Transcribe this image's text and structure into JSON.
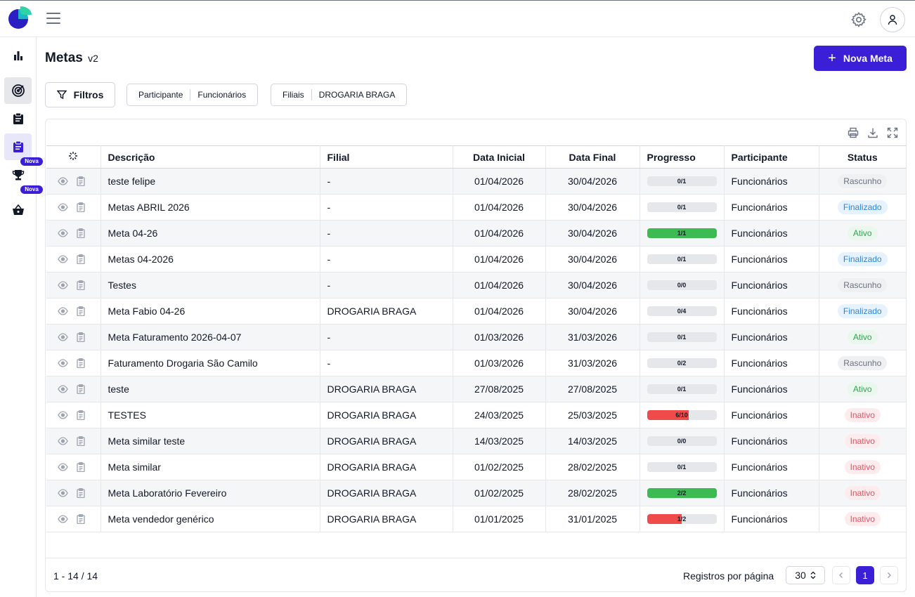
{
  "colors": {
    "accent": "#3b1fd6",
    "progress_green": "#3dbb53",
    "progress_red": "#f04b4b"
  },
  "sidebar": {
    "badges": [
      "Nova",
      "Nova"
    ]
  },
  "page": {
    "title": "Metas",
    "version": "v2",
    "new_button": "Nova Meta"
  },
  "filters": {
    "button": "Filtros",
    "chips": [
      {
        "key": "Participante",
        "value": "Funcionários"
      },
      {
        "key": "Filiais",
        "value": "DROGARIA BRAGA"
      }
    ]
  },
  "table": {
    "columns": [
      "",
      "Descrição",
      "Filial",
      "Data Inicial",
      "Data Final",
      "Progresso",
      "Participante",
      "Status"
    ],
    "rows": [
      {
        "descricao": "teste felipe",
        "filial": "-",
        "inicio": "01/04/2026",
        "fim": "30/04/2026",
        "progresso": "0/1",
        "progress_fraction": 0,
        "participante": "Funcionários",
        "status": "Rascunho"
      },
      {
        "descricao": "Metas ABRIL 2026",
        "filial": "-",
        "inicio": "01/04/2026",
        "fim": "30/04/2026",
        "progresso": "0/1",
        "progress_fraction": 0,
        "participante": "Funcionários",
        "status": "Finalizado"
      },
      {
        "descricao": "Meta 04-26",
        "filial": "-",
        "inicio": "01/04/2026",
        "fim": "30/04/2026",
        "progresso": "1/1",
        "progress_fraction": 1,
        "participante": "Funcionários",
        "status": "Ativo"
      },
      {
        "descricao": "Metas 04-2026",
        "filial": "-",
        "inicio": "01/04/2026",
        "fim": "30/04/2026",
        "progresso": "0/1",
        "progress_fraction": 0,
        "participante": "Funcionários",
        "status": "Finalizado"
      },
      {
        "descricao": "Testes",
        "filial": "-",
        "inicio": "01/04/2026",
        "fim": "30/04/2026",
        "progresso": "0/0",
        "progress_fraction": 0,
        "participante": "Funcionários",
        "status": "Rascunho"
      },
      {
        "descricao": "Meta Fabio 04-26",
        "filial": "DROGARIA BRAGA",
        "inicio": "01/04/2026",
        "fim": "30/04/2026",
        "progresso": "0/4",
        "progress_fraction": 0,
        "participante": "Funcionários",
        "status": "Finalizado"
      },
      {
        "descricao": "Meta Faturamento 2026-04-07",
        "filial": "-",
        "inicio": "01/03/2026",
        "fim": "31/03/2026",
        "progresso": "0/1",
        "progress_fraction": 0,
        "participante": "Funcionários",
        "status": "Ativo"
      },
      {
        "descricao": "Faturamento Drogaria São Camilo",
        "filial": "-",
        "inicio": "01/03/2026",
        "fim": "31/03/2026",
        "progresso": "0/2",
        "progress_fraction": 0,
        "participante": "Funcionários",
        "status": "Rascunho"
      },
      {
        "descricao": "teste",
        "filial": "DROGARIA BRAGA",
        "inicio": "27/08/2025",
        "fim": "27/08/2025",
        "progresso": "0/1",
        "progress_fraction": 0,
        "participante": "Funcionários",
        "status": "Ativo"
      },
      {
        "descricao": "TESTES",
        "filial": "DROGARIA BRAGA",
        "inicio": "24/03/2025",
        "fim": "25/03/2025",
        "progresso": "6/10",
        "progress_fraction": 0.6,
        "participante": "Funcionários",
        "status": "Inativo"
      },
      {
        "descricao": "Meta similar teste",
        "filial": "DROGARIA BRAGA",
        "inicio": "14/03/2025",
        "fim": "14/03/2025",
        "progresso": "0/0",
        "progress_fraction": 0,
        "participante": "Funcionários",
        "status": "Inativo"
      },
      {
        "descricao": "Meta similar",
        "filial": "DROGARIA BRAGA",
        "inicio": "01/02/2025",
        "fim": "28/02/2025",
        "progresso": "0/1",
        "progress_fraction": 0,
        "participante": "Funcionários",
        "status": "Inativo"
      },
      {
        "descricao": "Meta Laboratório Fevereiro",
        "filial": "DROGARIA BRAGA",
        "inicio": "01/02/2025",
        "fim": "28/02/2025",
        "progresso": "2/2",
        "progress_fraction": 1,
        "participante": "Funcionários",
        "status": "Inativo"
      },
      {
        "descricao": "Meta vendedor genérico",
        "filial": "DROGARIA BRAGA",
        "inicio": "01/01/2025",
        "fim": "31/01/2025",
        "progresso": "1/2",
        "progress_fraction": 0.5,
        "participante": "Funcionários",
        "status": "Inativo"
      }
    ]
  },
  "status_styles": {
    "Rascunho": {
      "bg": "#eef0f2",
      "fg": "#6b7280"
    },
    "Finalizado": {
      "bg": "#e6f2fd",
      "fg": "#2f86d6"
    },
    "Ativo": {
      "bg": "#e9f7ec",
      "fg": "#2fa44f"
    },
    "Inativo": {
      "bg": "#fdecee",
      "fg": "#e05260"
    }
  },
  "footer": {
    "count": "1 - 14 / 14",
    "per_page_label": "Registros por página",
    "per_page": "30",
    "current_page": "1"
  }
}
